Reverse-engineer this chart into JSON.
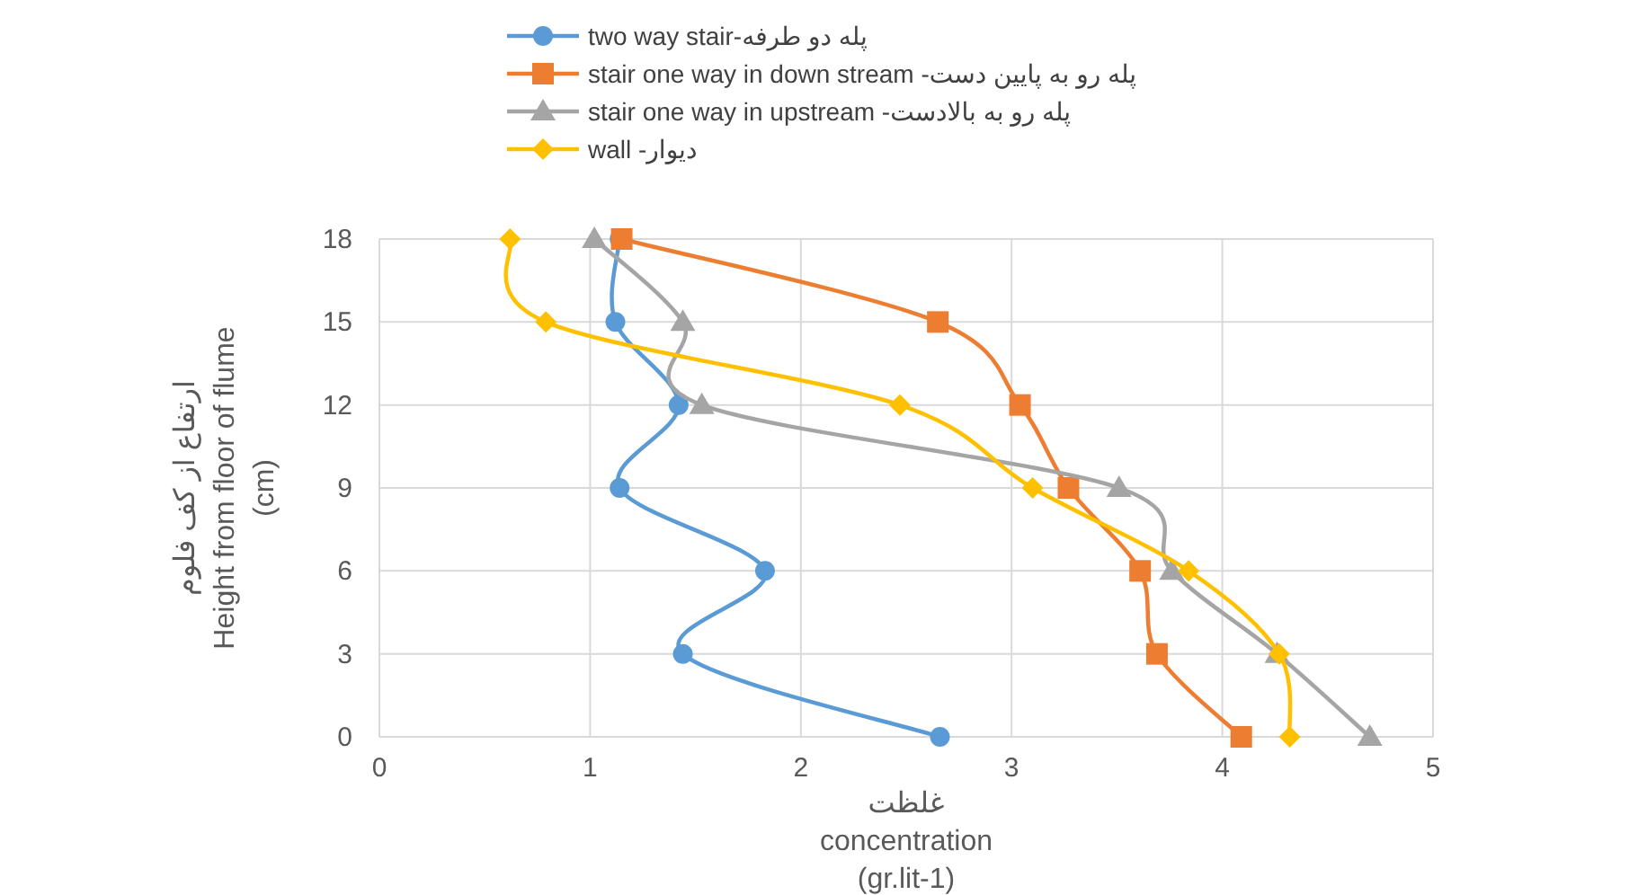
{
  "chart_data": {
    "type": "line",
    "xlabel": "غلظت\nconcentration\n(gr.lit-1)",
    "ylabel": "ارتفاع از کف فلوم\nHeight from floor of flume\n(cm)",
    "xlim": [
      0,
      5
    ],
    "xticks": [
      0,
      1,
      2,
      3,
      4,
      5
    ],
    "ylim": [
      0,
      18
    ],
    "yticks": [
      0,
      3,
      6,
      9,
      12,
      15,
      18
    ],
    "grid": true,
    "legend": "top",
    "line_style": "solid",
    "series": [
      {
        "name": "two way stair-پله دو طرفه",
        "color": "#5b9bd5",
        "marker": "circle",
        "x": [
          2.66,
          1.44,
          1.83,
          1.14,
          1.42,
          1.12,
          1.14
        ],
        "values": [
          0,
          3,
          6,
          9,
          12,
          15,
          18
        ]
      },
      {
        "name": "stair one way in down stream -پله رو به پایین دست",
        "color": "#ed7d31",
        "marker": "square",
        "x": [
          4.09,
          3.69,
          3.61,
          3.27,
          3.04,
          2.65,
          1.15
        ],
        "values": [
          0,
          3,
          6,
          9,
          12,
          15,
          18
        ]
      },
      {
        "name": "stair one way in upstream -پله رو به بالادست",
        "color": "#a5a5a5",
        "marker": "triangle",
        "x": [
          4.7,
          4.26,
          3.76,
          3.51,
          1.53,
          1.44,
          1.02
        ],
        "values": [
          0,
          3,
          6,
          9,
          12,
          15,
          18
        ]
      },
      {
        "name": "wall -دیوار",
        "color": "#ffc000",
        "marker": "diamond",
        "x": [
          4.32,
          4.27,
          3.84,
          3.1,
          2.47,
          0.79,
          0.62
        ],
        "values": [
          0,
          3,
          6,
          9,
          12,
          15,
          18
        ]
      }
    ]
  }
}
